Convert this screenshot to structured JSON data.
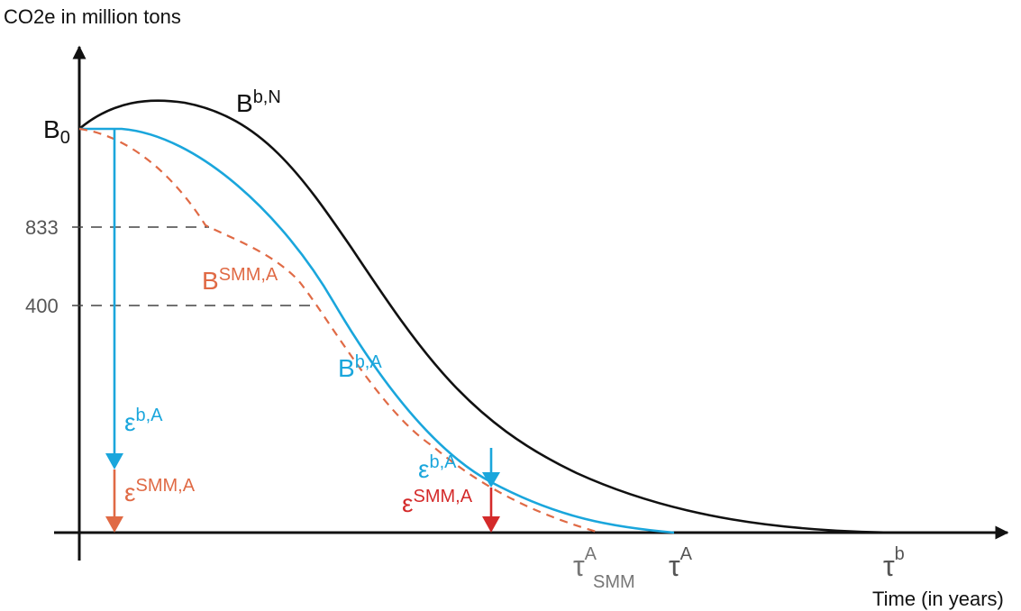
{
  "chart_data": {
    "type": "line",
    "title": "",
    "ylabel": "CO2e in million tons",
    "xlabel": "Time (in years)",
    "y_axis_labels": {
      "origin": {
        "base": "B",
        "sub": "0"
      },
      "ticks": [
        "833",
        "400"
      ]
    },
    "series": [
      {
        "name": "B^b,N",
        "label_base": "B",
        "label_sup": "b,N",
        "color": "#111111",
        "style": "solid"
      },
      {
        "name": "B^b,A",
        "label_base": "B",
        "label_sup": "b,A",
        "color": "#1aa6dc",
        "style": "solid"
      },
      {
        "name": "B^SMM,A",
        "label_base": "B",
        "label_sup": "SMM,A",
        "color": "#e06a45",
        "style": "dashed"
      }
    ],
    "reference_lines": [
      {
        "y_label": "833",
        "style": "dashed",
        "color": "#444444"
      },
      {
        "y_label": "400",
        "style": "dashed",
        "color": "#444444"
      }
    ],
    "annotations": {
      "left_arrow_blue": {
        "base": "ε",
        "sup": "b,A",
        "color": "#1aa6dc"
      },
      "left_arrow_red": {
        "base": "ε",
        "sup": "SMM,A",
        "color": "#e06a45"
      },
      "right_arrow_blue": {
        "base": "ε",
        "sup": "b,A",
        "color": "#1aa6dc"
      },
      "right_arrow_red": {
        "base": "ε",
        "sup": "SMM,A",
        "color": "#d42a2a"
      }
    },
    "x_markers": [
      {
        "base": "τ",
        "sup": "A",
        "sub": "SMM",
        "color": "#777777"
      },
      {
        "base": "τ",
        "sup": "A",
        "sub": "",
        "color": "#555555"
      },
      {
        "base": "τ",
        "sup": "b",
        "sub": "",
        "color": "#555555"
      }
    ],
    "grid": false,
    "legend": "none"
  }
}
